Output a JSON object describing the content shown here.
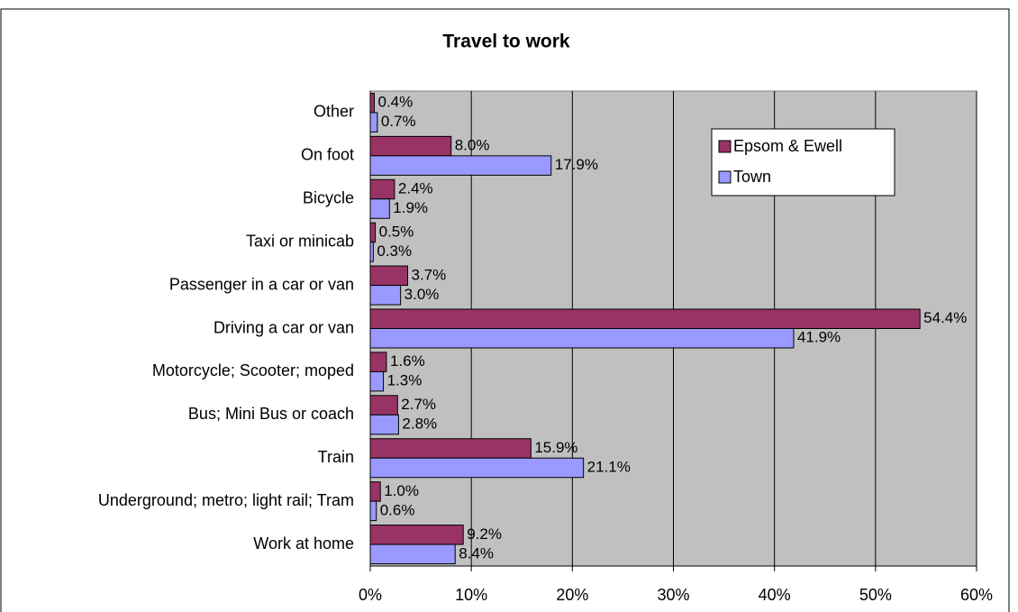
{
  "chart_data": {
    "type": "hbar",
    "title": "Travel to work",
    "categories": [
      "Other",
      "On foot",
      "Bicycle",
      "Taxi or minicab",
      "Passenger in a car or van",
      "Driving a car or van",
      "Motorcycle; Scooter; moped",
      "Bus; Mini Bus or coach",
      "Train",
      "Underground; metro; light rail; Tram",
      "Work at home"
    ],
    "series": [
      {
        "name": "Epsom & Ewell",
        "color": "#993366",
        "values": [
          0.4,
          8.0,
          2.4,
          0.5,
          3.7,
          54.4,
          1.6,
          2.7,
          15.9,
          1.0,
          9.2
        ],
        "value_labels": [
          "0.4%",
          "8.0%",
          "2.4%",
          "0.5%",
          "3.7%",
          "54.4%",
          "1.6%",
          "2.7%",
          "15.9%",
          "1.0%",
          "9.2%"
        ]
      },
      {
        "name": "Town",
        "color": "#9999FF",
        "values": [
          0.7,
          17.9,
          1.9,
          0.3,
          3.0,
          41.9,
          1.3,
          2.8,
          21.1,
          0.6,
          8.4
        ],
        "value_labels": [
          "0.7%",
          "17.9%",
          "1.9%",
          "0.3%",
          "3.0%",
          "41.9%",
          "1.3%",
          "2.8%",
          "21.1%",
          "0.6%",
          "8.4%"
        ]
      }
    ],
    "xlim": [
      0,
      60
    ],
    "xticks": [
      {
        "value": 0,
        "label": "0%"
      },
      {
        "value": 10,
        "label": "10%"
      },
      {
        "value": 20,
        "label": "20%"
      },
      {
        "value": 30,
        "label": "30%"
      },
      {
        "value": 40,
        "label": "40%"
      },
      {
        "value": 50,
        "label": "50%"
      },
      {
        "value": 60,
        "label": "60%"
      }
    ],
    "grid": true,
    "legend": "upper right"
  }
}
